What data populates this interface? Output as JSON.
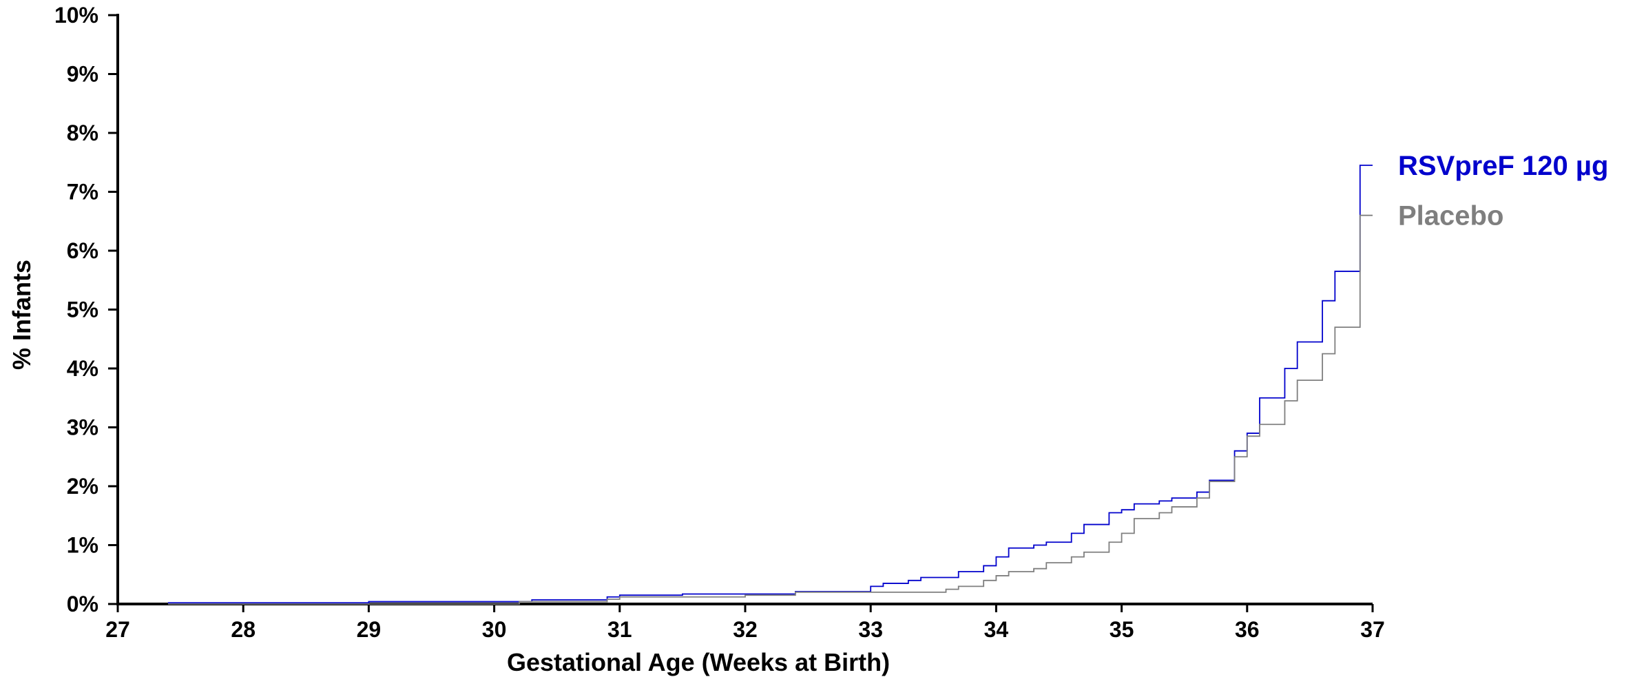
{
  "chart_data": {
    "type": "line",
    "step": true,
    "xlabel": "Gestational Age (Weeks at Birth)",
    "ylabel": "% Infants",
    "xlim": [
      27,
      37
    ],
    "ylim": [
      0,
      10
    ],
    "x_ticks": [
      "27",
      "28",
      "29",
      "30",
      "31",
      "32",
      "33",
      "34",
      "35",
      "36",
      "37"
    ],
    "y_ticks": [
      "0%",
      "1%",
      "2%",
      "3%",
      "4%",
      "5%",
      "6%",
      "7%",
      "8%",
      "9%",
      "10%"
    ],
    "grid": false,
    "legend_placement": "right",
    "series": [
      {
        "name": "RSVpreF 120 µg",
        "color": "#0000cc",
        "points": [
          [
            27.4,
            0.02
          ],
          [
            29.0,
            0.04
          ],
          [
            30.3,
            0.07
          ],
          [
            30.9,
            0.12
          ],
          [
            31.0,
            0.15
          ],
          [
            31.5,
            0.17
          ],
          [
            32.4,
            0.21
          ],
          [
            33.0,
            0.3
          ],
          [
            33.1,
            0.35
          ],
          [
            33.3,
            0.4
          ],
          [
            33.4,
            0.45
          ],
          [
            33.7,
            0.55
          ],
          [
            33.9,
            0.65
          ],
          [
            34.0,
            0.8
          ],
          [
            34.1,
            0.95
          ],
          [
            34.3,
            1.0
          ],
          [
            34.4,
            1.05
          ],
          [
            34.6,
            1.2
          ],
          [
            34.7,
            1.35
          ],
          [
            34.9,
            1.55
          ],
          [
            35.0,
            1.6
          ],
          [
            35.1,
            1.7
          ],
          [
            35.3,
            1.75
          ],
          [
            35.4,
            1.8
          ],
          [
            35.6,
            1.9
          ],
          [
            35.7,
            2.1
          ],
          [
            35.9,
            2.6
          ],
          [
            36.0,
            2.9
          ],
          [
            36.1,
            3.5
          ],
          [
            36.3,
            4.0
          ],
          [
            36.4,
            4.45
          ],
          [
            36.6,
            5.15
          ],
          [
            36.7,
            5.65
          ],
          [
            36.9,
            7.45
          ],
          [
            37.0,
            7.45
          ]
        ]
      },
      {
        "name": "Placebo",
        "color": "#7f7f7f",
        "points": [
          [
            27.4,
            0.0
          ],
          [
            30.2,
            0.04
          ],
          [
            30.9,
            0.08
          ],
          [
            31.0,
            0.12
          ],
          [
            32.0,
            0.15
          ],
          [
            32.4,
            0.2
          ],
          [
            33.0,
            0.2
          ],
          [
            33.6,
            0.25
          ],
          [
            33.7,
            0.3
          ],
          [
            33.9,
            0.4
          ],
          [
            34.0,
            0.48
          ],
          [
            34.1,
            0.55
          ],
          [
            34.3,
            0.6
          ],
          [
            34.4,
            0.7
          ],
          [
            34.6,
            0.8
          ],
          [
            34.7,
            0.88
          ],
          [
            34.9,
            1.05
          ],
          [
            35.0,
            1.2
          ],
          [
            35.1,
            1.45
          ],
          [
            35.3,
            1.55
          ],
          [
            35.4,
            1.65
          ],
          [
            35.6,
            1.8
          ],
          [
            35.7,
            2.08
          ],
          [
            35.9,
            2.5
          ],
          [
            36.0,
            2.85
          ],
          [
            36.1,
            3.05
          ],
          [
            36.3,
            3.45
          ],
          [
            36.4,
            3.8
          ],
          [
            36.6,
            4.25
          ],
          [
            36.7,
            4.7
          ],
          [
            36.9,
            6.6
          ],
          [
            37.0,
            6.6
          ]
        ]
      }
    ]
  }
}
